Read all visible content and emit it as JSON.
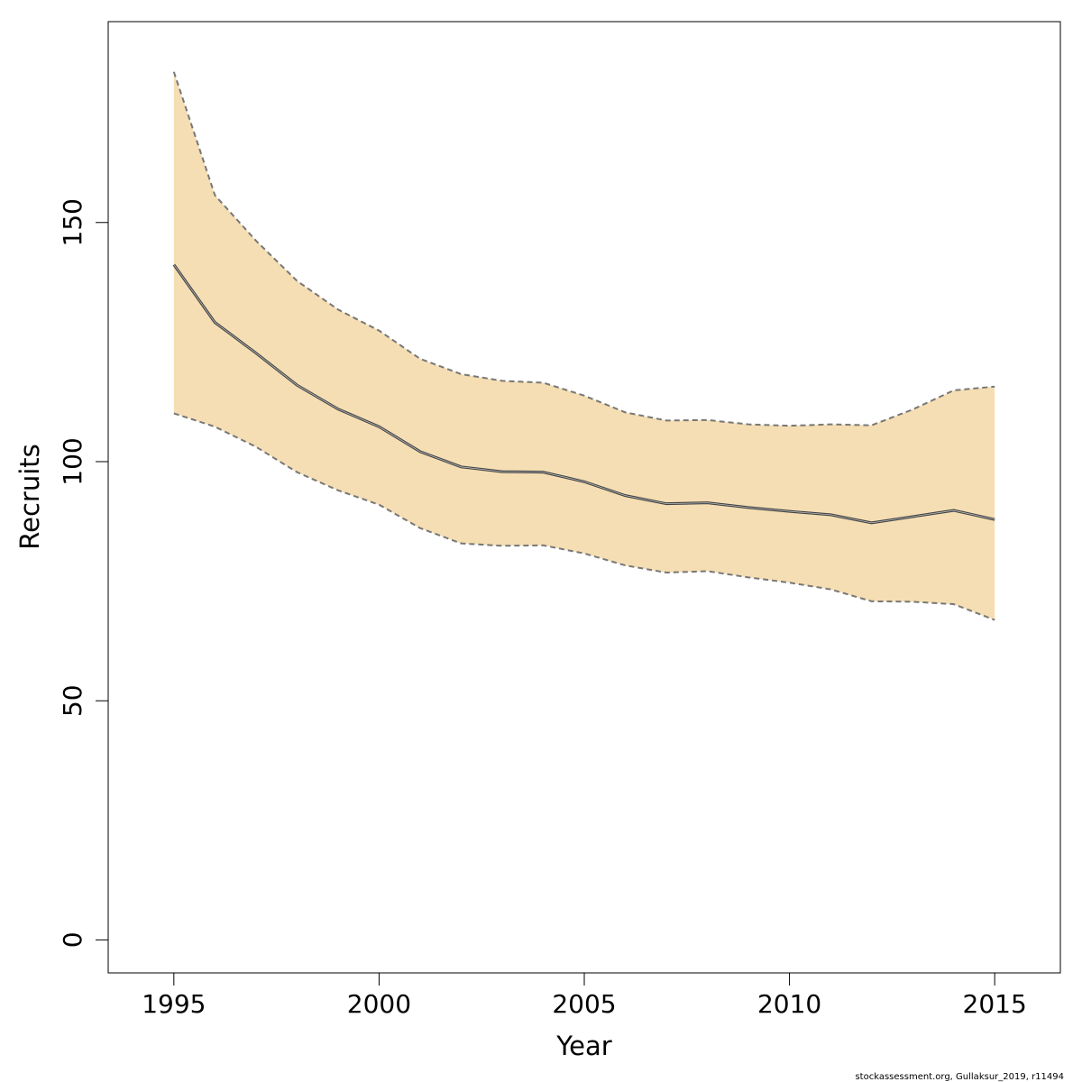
{
  "chart_data": {
    "type": "line",
    "title": "",
    "xlabel": "Year",
    "ylabel": "Recruits",
    "xlim": [
      1993.4,
      2016.6
    ],
    "ylim": [
      -6.9,
      192
    ],
    "x_ticks": [
      1995,
      2000,
      2005,
      2010,
      2015
    ],
    "y_ticks": [
      0,
      50,
      100,
      150
    ],
    "grid": false,
    "legend": "none",
    "x": [
      1995,
      1996,
      1997,
      1998,
      1999,
      2000,
      2001,
      2002,
      2003,
      2004,
      2005,
      2006,
      2007,
      2008,
      2009,
      2010,
      2011,
      2012,
      2013,
      2014,
      2015
    ],
    "series": [
      {
        "role": "estimate",
        "values": [
          141.2,
          129.1,
          122.7,
          116.0,
          111.0,
          107.3,
          102.1,
          98.9,
          97.9,
          97.8,
          95.8,
          92.9,
          91.2,
          91.4,
          90.4,
          89.6,
          88.9,
          87.2,
          88.5,
          89.8,
          87.9
        ]
      },
      {
        "role": "upper",
        "values": [
          181.5,
          155.7,
          146.2,
          137.8,
          131.8,
          127.4,
          121.5,
          118.3,
          116.9,
          116.5,
          113.8,
          110.3,
          108.6,
          108.7,
          107.8,
          107.5,
          107.8,
          107.6,
          110.9,
          114.9,
          115.7
        ]
      },
      {
        "role": "lower",
        "values": [
          110.1,
          107.3,
          103.1,
          97.8,
          94.0,
          91.0,
          86.1,
          82.9,
          82.4,
          82.5,
          80.8,
          78.3,
          76.8,
          77.1,
          75.8,
          74.7,
          73.3,
          70.8,
          70.7,
          70.2,
          66.9
        ]
      }
    ],
    "colors": {
      "band_fill": "#f5deb3",
      "band_edge": "#777777",
      "estimate_line": "#444444",
      "axis": "#000000"
    },
    "footer_text": "stockassessment.org, Gullaksur_2019, r11494"
  }
}
